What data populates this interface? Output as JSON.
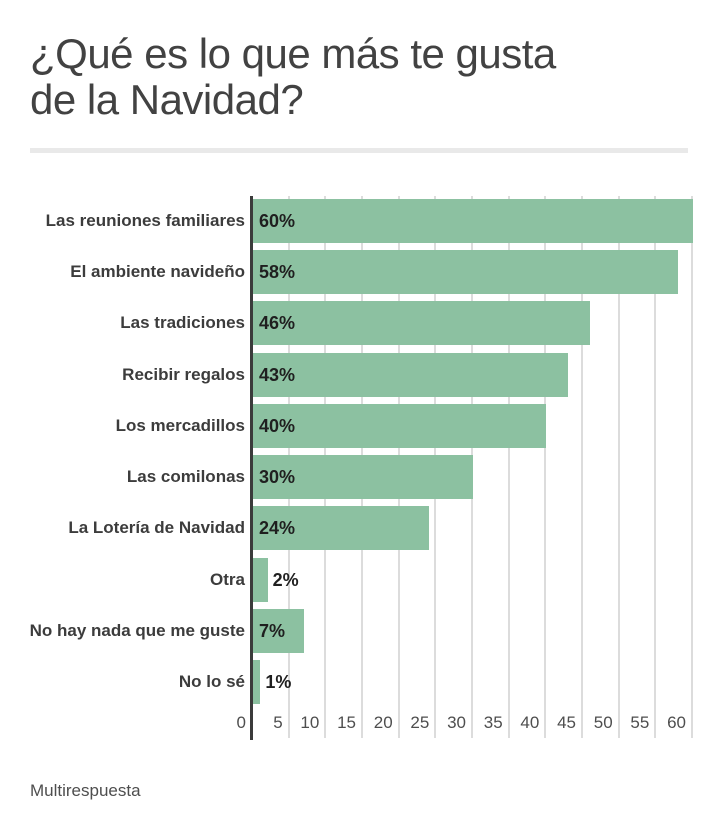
{
  "page": {
    "title_line1": "¿Qué es lo que más te gusta",
    "title_line2": "de la Navidad?",
    "footer": "Multirespuesta"
  },
  "chart_data": {
    "type": "bar",
    "orientation": "horizontal",
    "title": "¿Qué es lo que más te gusta de la Navidad?",
    "footnote": "Multirespuesta",
    "categories": [
      "Las reuniones familiares",
      "El ambiente navideño",
      "Las tradiciones",
      "Recibir regalos",
      "Los mercadillos",
      "Las comilonas",
      "La Lotería de Navidad",
      "Otra",
      "No hay nada que me guste",
      "No lo sé"
    ],
    "values": [
      60,
      58,
      46,
      43,
      40,
      30,
      24,
      2,
      7,
      1
    ],
    "value_labels": [
      "60%",
      "58%",
      "46%",
      "43%",
      "40%",
      "30%",
      "24%",
      "2%",
      "7%",
      "1%"
    ],
    "value_suffix": "%",
    "xlim": [
      0,
      60
    ],
    "x_ticks": [
      0,
      5,
      10,
      15,
      20,
      25,
      30,
      35,
      40,
      45,
      50,
      55,
      60
    ],
    "grid": true,
    "legend": false,
    "bar_color": "#8cc1a1",
    "axis_line_color": "#3b3b3b",
    "gridline_color": "#dcdcdc"
  }
}
